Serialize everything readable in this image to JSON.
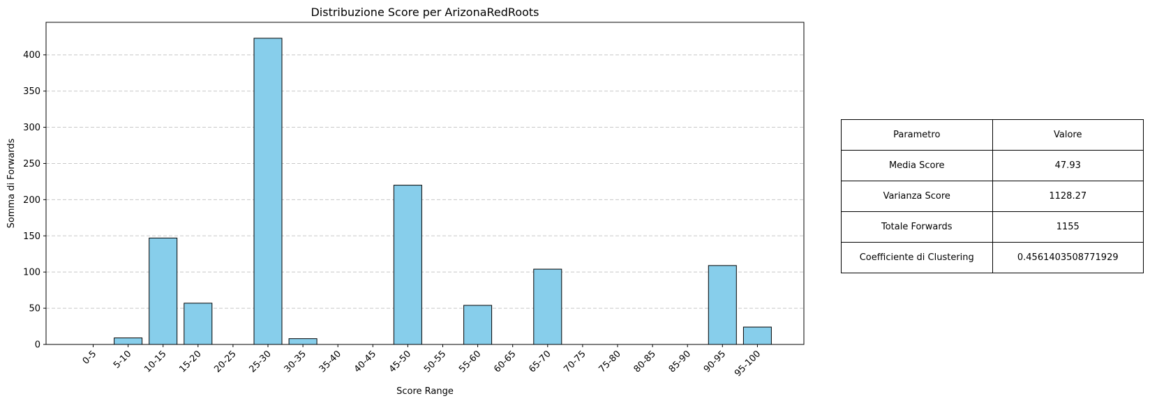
{
  "chart_data": {
    "type": "bar",
    "title": "Distribuzione Score per ArizonaRedRoots",
    "xlabel": "Score Range",
    "ylabel": "Somma di Forwards",
    "categories": [
      "0-5",
      "5-10",
      "10-15",
      "15-20",
      "20-25",
      "25-30",
      "30-35",
      "35-40",
      "40-45",
      "45-50",
      "50-55",
      "55-60",
      "60-65",
      "65-70",
      "70-75",
      "75-80",
      "80-85",
      "85-90",
      "90-95",
      "95-100"
    ],
    "values": [
      0,
      9,
      147,
      57,
      0,
      423,
      8,
      0,
      0,
      220,
      0,
      54,
      0,
      104,
      0,
      0,
      0,
      0,
      109,
      24
    ],
    "ylim": [
      0,
      445
    ],
    "yticks": [
      0,
      50,
      100,
      150,
      200,
      250,
      300,
      350,
      400
    ],
    "grid": "y-dashed",
    "bar_color": "#87CEEB",
    "edge_color": "#000000",
    "grid_color": "#c8c8c8"
  },
  "stats_table": {
    "header": [
      "Parametro",
      "Valore"
    ],
    "rows": [
      [
        "Media Score",
        "47.93"
      ],
      [
        "Varianza Score",
        "1128.27"
      ],
      [
        "Totale Forwards",
        "1155"
      ],
      [
        "Coefficiente di Clustering",
        "0.4561403508771929"
      ]
    ]
  }
}
